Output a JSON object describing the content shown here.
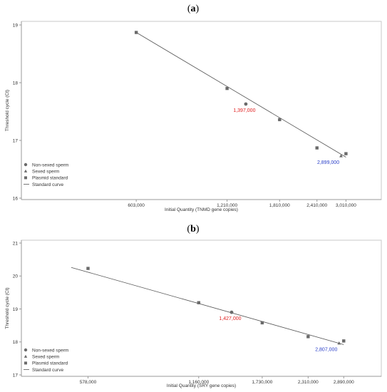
{
  "chart_data": [
    {
      "type": "scatter",
      "panel_label": "a",
      "xlabel": "Initial Quantity (TNMD gene copies)",
      "ylabel": "Threshold cycle (Ct)",
      "xticks": [
        603000,
        1210000,
        1810000,
        2410000,
        3010000
      ],
      "xtick_labels": [
        "603,000",
        "1,210,000",
        "1,810,000",
        "2,410,000",
        "3,010,000"
      ],
      "yticks": [
        16,
        17,
        18,
        19
      ],
      "ytick_labels": [
        "16",
        "17",
        "18",
        "19"
      ],
      "xlim": [
        250000,
        3350000
      ],
      "ylim": [
        16,
        19
      ],
      "log_x": true,
      "grid": false,
      "legend_position": "bottom-left",
      "legend": [
        {
          "label": "Non-sexed sperm",
          "marker": "circle"
        },
        {
          "label": "Sexed sperm",
          "marker": "triangle"
        },
        {
          "label": "Plasmid standard",
          "marker": "square"
        },
        {
          "label": "Standard curve",
          "marker": "line"
        }
      ],
      "series": [
        {
          "name": "Plasmid standard",
          "marker": "square",
          "x": [
            603000,
            1210000,
            1810000,
            2410000,
            3010000
          ],
          "y": [
            18.87,
            17.9,
            17.36,
            16.87,
            16.77
          ]
        },
        {
          "name": "Non-sexed sperm",
          "marker": "circle",
          "x": [
            1397000
          ],
          "y": [
            17.63
          ]
        },
        {
          "name": "Sexed sperm",
          "marker": "triangle",
          "x": [
            2899000
          ],
          "y": [
            16.73
          ]
        },
        {
          "name": "Standard curve",
          "marker": "line",
          "x": [
            603000,
            3010000
          ],
          "y": [
            18.87,
            16.71
          ]
        }
      ],
      "annotations": [
        {
          "text": "1,397,000",
          "x": 1397000,
          "y": 17.63,
          "color": "#e02020"
        },
        {
          "text": "2,899,000",
          "x": 2899000,
          "y": 16.73,
          "color": "#2a3fc8"
        }
      ]
    },
    {
      "type": "scatter",
      "panel_label": "b",
      "xlabel": "Initial Quantity (SRY gene copies)",
      "ylabel": "Threshold cycle (Ct)",
      "xticks": [
        578000,
        1160000,
        1730000,
        2310000,
        2890000
      ],
      "xtick_labels": [
        "578,000",
        "1,160,000",
        "1,730,000",
        "2,310,000",
        "2,890,000"
      ],
      "yticks": [
        17,
        18,
        19,
        20,
        21
      ],
      "ytick_labels": [
        "17",
        "18",
        "19",
        "20",
        "21"
      ],
      "xlim": [
        380000,
        3200000
      ],
      "ylim": [
        17,
        21
      ],
      "log_x": true,
      "grid": false,
      "legend_position": "bottom-left",
      "legend": [
        {
          "label": "Non-sexed sperm",
          "marker": "circle"
        },
        {
          "label": "Sexed sperm",
          "marker": "triangle"
        },
        {
          "label": "Plasmid standard",
          "marker": "square"
        },
        {
          "label": "Standard curve",
          "marker": "line"
        }
      ],
      "series": [
        {
          "name": "Plasmid standard",
          "marker": "square",
          "x": [
            578000,
            1160000,
            1730000,
            2310000,
            2890000
          ],
          "y": [
            20.23,
            19.19,
            18.58,
            18.16,
            18.03
          ]
        },
        {
          "name": "Non-sexed sperm",
          "marker": "circle",
          "x": [
            1427000
          ],
          "y": [
            18.9
          ]
        },
        {
          "name": "Sexed sperm",
          "marker": "triangle",
          "x": [
            2807000
          ],
          "y": [
            17.96
          ]
        },
        {
          "name": "Standard curve",
          "marker": "line",
          "x": [
            520000,
            2890000
          ],
          "y": [
            20.26,
            17.92
          ]
        }
      ],
      "annotations": [
        {
          "text": "1,427,000",
          "x": 1427000,
          "y": 18.9,
          "color": "#e02020"
        },
        {
          "text": "2,807,000",
          "x": 2807000,
          "y": 17.96,
          "color": "#2a3fc8"
        }
      ]
    }
  ]
}
